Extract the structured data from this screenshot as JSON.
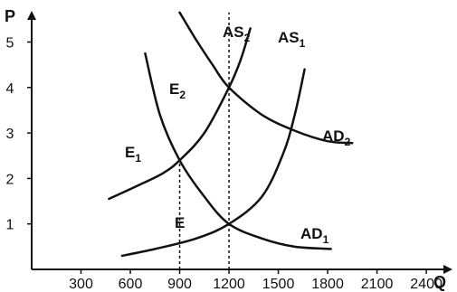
{
  "chart_data": {
    "type": "line",
    "xlabel": "Q",
    "ylabel": "P",
    "x_ticks": [
      300,
      600,
      900,
      1200,
      1500,
      1800,
      2100,
      2400
    ],
    "y_ticks": [
      1,
      2,
      3,
      4,
      5
    ],
    "xlim": [
      0,
      2850
    ],
    "ylim": [
      0,
      5.45
    ],
    "grid": false,
    "legend": "none",
    "series": [
      {
        "name": "AS",
        "subscript": "1",
        "x": [
          550,
          750,
          1000,
          1200,
          1400,
          1530,
          1600,
          1660
        ],
        "y": [
          0.3,
          0.45,
          0.68,
          1.0,
          1.6,
          2.55,
          3.4,
          4.4
        ]
      },
      {
        "name": "AS",
        "subscript": "2",
        "x": [
          470,
          650,
          800,
          900,
          1050,
          1200,
          1270,
          1330
        ],
        "y": [
          1.55,
          1.85,
          2.12,
          2.4,
          3.0,
          4.0,
          4.6,
          5.3
        ]
      },
      {
        "name": "AD",
        "subscript": "1",
        "x": [
          690,
          780,
          900,
          1050,
          1200,
          1400,
          1600,
          1820
        ],
        "y": [
          4.75,
          3.4,
          2.4,
          1.6,
          1.0,
          0.68,
          0.5,
          0.45
        ]
      },
      {
        "name": "AD",
        "subscript": "2",
        "x": [
          900,
          1000,
          1100,
          1200,
          1400,
          1600,
          1800,
          1950
        ],
        "y": [
          5.65,
          5.05,
          4.5,
          4.0,
          3.4,
          3.05,
          2.82,
          2.78
        ]
      }
    ],
    "points": [
      {
        "label": "E",
        "subscript": "",
        "x": 1200,
        "y": 1.0
      },
      {
        "label": "E",
        "subscript": "1",
        "x": 900,
        "y": 2.4
      },
      {
        "label": "E",
        "subscript": "2",
        "x": 1200,
        "y": 4.0
      }
    ],
    "guide_lines_x": [
      900,
      1200
    ]
  }
}
